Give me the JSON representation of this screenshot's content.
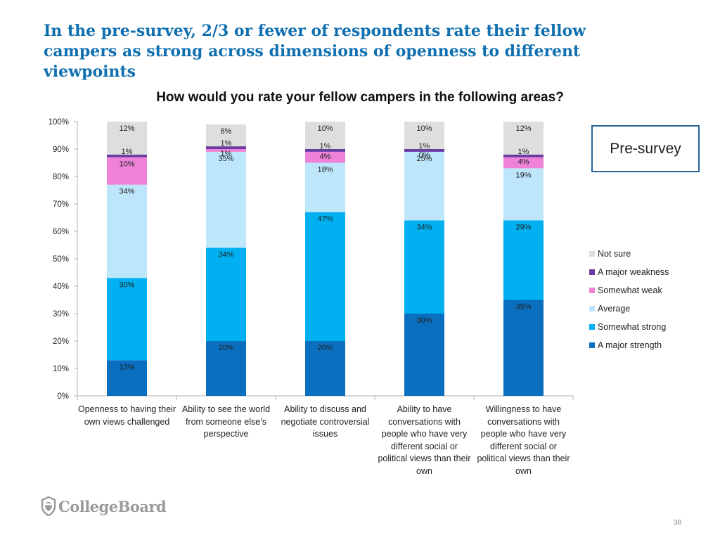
{
  "slide": {
    "title": "In the pre-survey, 2/3 or fewer of respondents rate their fellow campers as strong across dimensions of openness to different viewpoints",
    "badge": "Pre-survey",
    "logo_text": "CollegeBoard",
    "page_number": "38"
  },
  "chart_data": {
    "type": "bar",
    "stacked": true,
    "title": "How would you rate your fellow campers in the following areas?",
    "categories": [
      "Openness to having their own views challenged",
      "Ability to see the world from someone else’s perspective",
      "Ability to discuss and negotiate controversial issues",
      "Ability to have conversations with people who have very different social or political views than their own",
      "Willingness to have conversations with people who have very different social or political views than their own"
    ],
    "y_ticks": [
      "0%",
      "10%",
      "20%",
      "30%",
      "40%",
      "50%",
      "60%",
      "70%",
      "80%",
      "90%",
      "100%"
    ],
    "ylim": [
      0,
      100
    ],
    "legend_position": "right",
    "series": [
      {
        "name": "A major strength",
        "color": "#0a6fbf",
        "values": [
          13,
          20,
          20,
          30,
          35
        ],
        "labels": [
          "13%",
          "20%",
          "20%",
          "30%",
          "35%"
        ]
      },
      {
        "name": "Somewhat strong",
        "color": "#00b0f0",
        "values": [
          30,
          34,
          47,
          34,
          29
        ],
        "labels": [
          "30%",
          "34%",
          "47%",
          "34%",
          "29%"
        ]
      },
      {
        "name": "Average",
        "color": "#bde6fb",
        "values": [
          34,
          35,
          18,
          25,
          19
        ],
        "labels": [
          "34%",
          "35%",
          "18%",
          "25%",
          "19%"
        ]
      },
      {
        "name": "Somewhat weak",
        "color": "#ee82d8",
        "values": [
          10,
          1,
          4,
          0,
          4
        ],
        "labels": [
          "10%",
          "1%",
          "4%",
          "0%",
          "4%"
        ]
      },
      {
        "name": "A major weakness",
        "color": "#6a3ba1",
        "values": [
          1,
          1,
          1,
          1,
          1
        ],
        "labels": [
          "1%",
          "1%",
          "1%",
          "1%",
          "1%"
        ]
      },
      {
        "name": "Not sure",
        "color": "#dedede",
        "values": [
          12,
          8,
          10,
          10,
          12
        ],
        "labels": [
          "12%",
          "8%",
          "10%",
          "10%",
          "12%"
        ]
      }
    ],
    "legend_order": [
      "Not sure",
      "A major weakness",
      "Somewhat weak",
      "Average",
      "Somewhat strong",
      "A major strength"
    ]
  }
}
